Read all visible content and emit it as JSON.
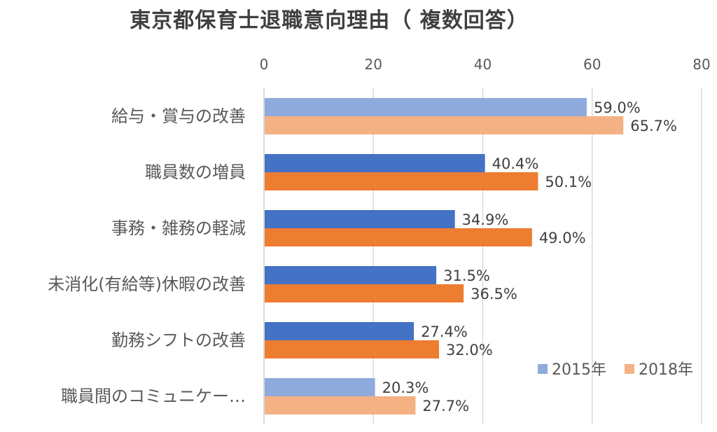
{
  "chart_data": {
    "type": "bar",
    "orientation": "horizontal",
    "title": "東京都保育士退職意向理由（ 複数回答）",
    "categories": [
      "給与・賞与の改善",
      "職員数の増員",
      "事務・雑務の軽減",
      "未消化(有給等)休暇の改善",
      "勤務シフトの改善",
      "職員間のコミュニケー…"
    ],
    "series": [
      {
        "name": "2015年",
        "values": [
          59.0,
          40.4,
          34.9,
          31.5,
          27.4,
          20.3
        ],
        "labels": [
          "59.0%",
          "40.4%",
          "34.9%",
          "31.5%",
          "27.4%",
          "20.3%"
        ]
      },
      {
        "name": "2018年",
        "values": [
          65.7,
          50.1,
          49.0,
          36.5,
          32.0,
          27.7
        ],
        "labels": [
          "65.7%",
          "50.1%",
          "49.0%",
          "36.5%",
          "32.0%",
          "27.7%"
        ]
      }
    ],
    "xlim": [
      0,
      80
    ],
    "xticks": [
      "0",
      "20",
      "40",
      "60",
      "80"
    ],
    "xaxis_position": "top",
    "grid": true,
    "legend": "bottom-right",
    "colors": {
      "2015": "#4472C4",
      "2018": "#ED7D31",
      "2015_highlight": "#8FAADC",
      "2018_highlight": "#F4B183"
    },
    "highlighted_categories": [
      "給与・賞与の改善",
      "職員間のコミュニケー…"
    ]
  }
}
